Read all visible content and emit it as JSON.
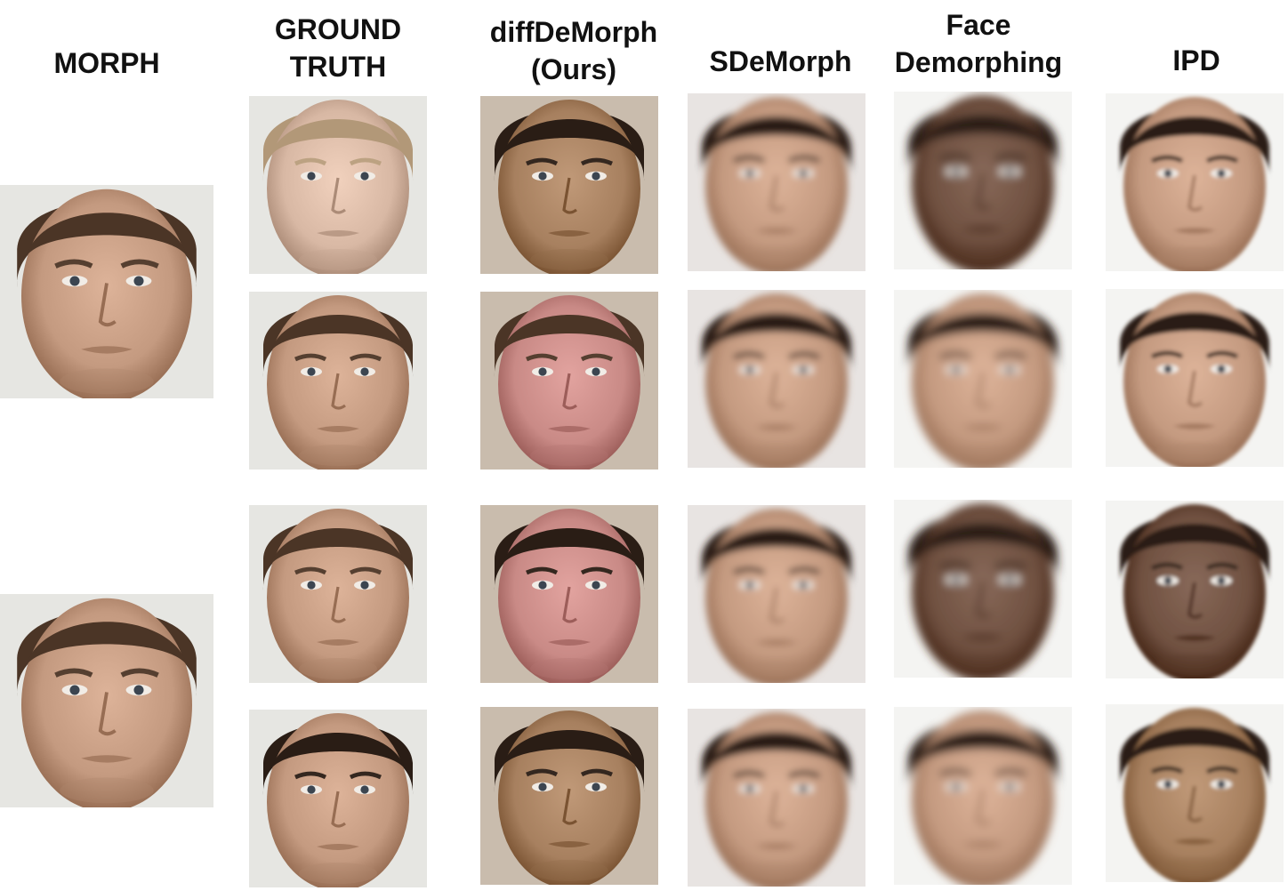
{
  "headers": {
    "morph": "MORPH",
    "ground_truth_line1": "GROUND",
    "ground_truth_line2": "TRUTH",
    "ours_line1": "diffDeMorph",
    "ours_line2": "(Ours)",
    "sdemorph": "SDeMorph",
    "face_demorph_line1": "Face",
    "face_demorph_line2": "Demorphing",
    "ipd": "IPD"
  },
  "style": {
    "bg_colors": {
      "studio": "#e6e6e2",
      "beige": "#c9bcad",
      "blur": "#e8e4e2",
      "white": "#f4f4f2"
    },
    "skin_tones": {
      "pale": "#d8b8a4",
      "tan": "#a7805f",
      "pink": "#c98a86",
      "dark": "#6f5040",
      "medium": "#c49a80"
    },
    "hair_colors": {
      "blond": "#b29878",
      "brown": "#4b3526",
      "dark": "#2a1d15"
    }
  }
}
